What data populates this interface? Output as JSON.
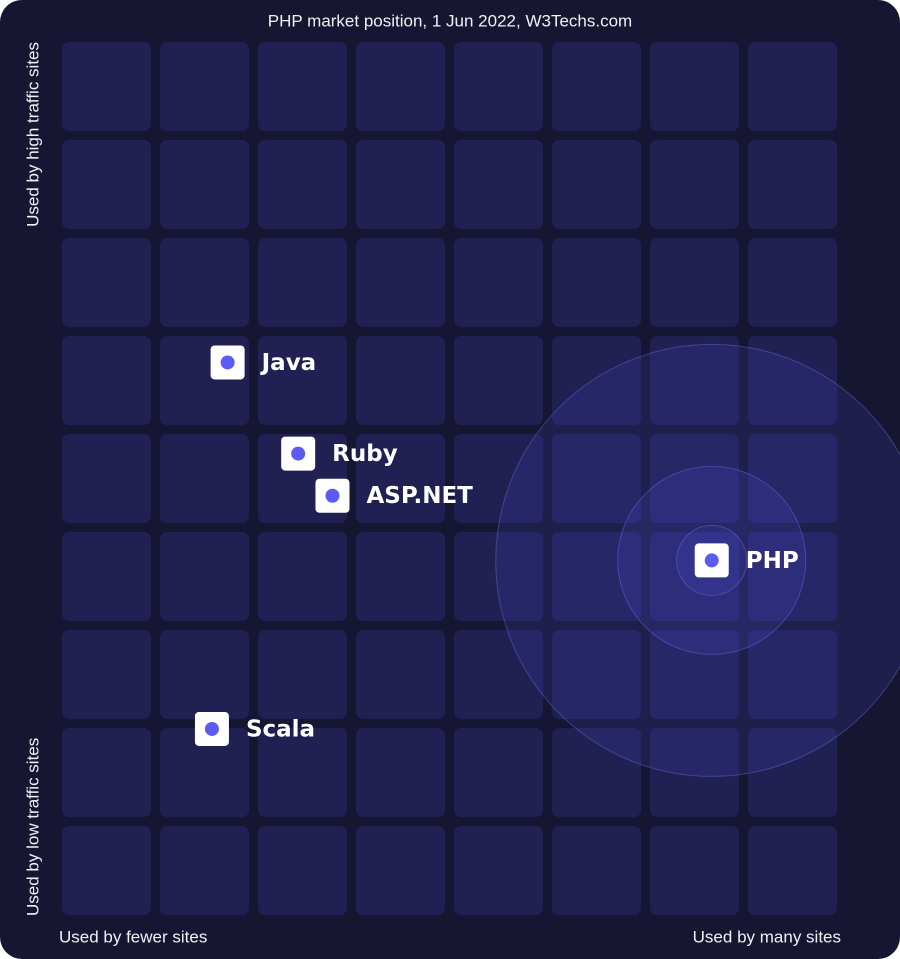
{
  "chart_data": {
    "type": "scatter",
    "title": "PHP market position, 1 Jun 2022, W3Techs.com",
    "x_label_left": "Used by fewer sites",
    "x_label_right": "Used by many sites",
    "y_label_top": "Used by high traffic sites",
    "y_label_bottom": "Used by low traffic sites",
    "xlim": [
      0,
      8
    ],
    "ylim": [
      0,
      9
    ],
    "highlight": "PHP",
    "color": "#5b5bf2",
    "points": [
      {
        "name": "Java",
        "x": 1.69,
        "y": 5.73
      },
      {
        "name": "Ruby",
        "x": 2.41,
        "y": 4.8
      },
      {
        "name": "ASP.NET",
        "x": 2.76,
        "y": 4.37
      },
      {
        "name": "PHP",
        "x": 6.63,
        "y": 3.71
      },
      {
        "name": "Scala",
        "x": 1.53,
        "y": 1.99
      }
    ]
  }
}
